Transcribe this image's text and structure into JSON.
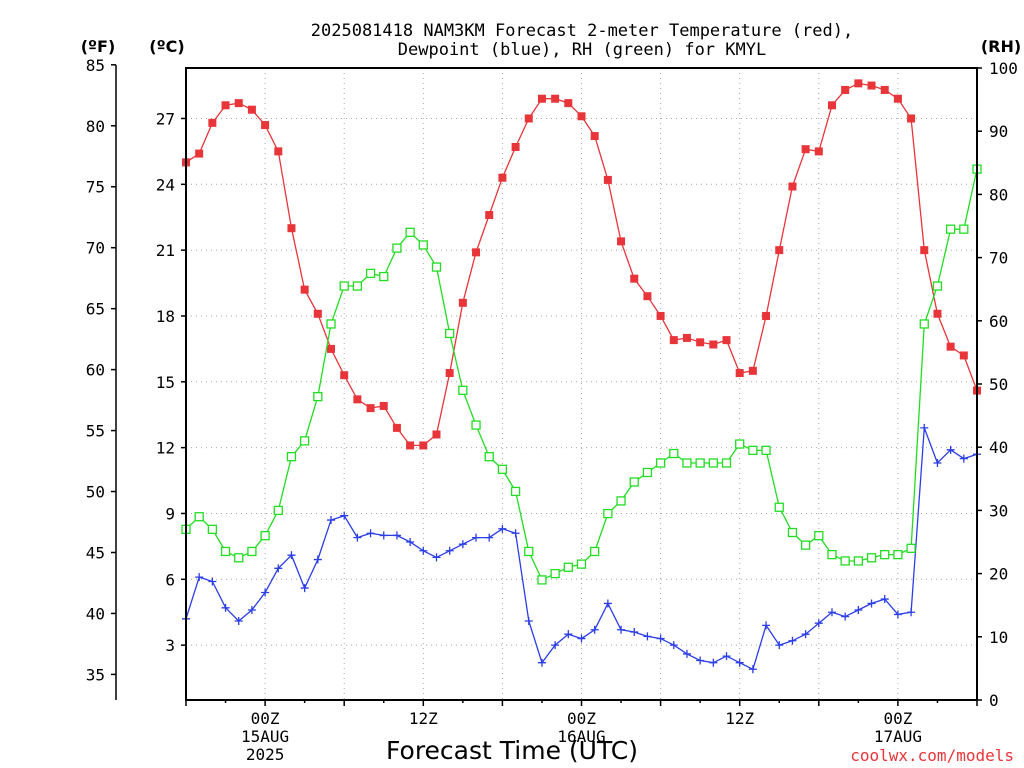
{
  "chart_data": {
    "type": "line",
    "title_lines": [
      "2025081418 NAM3KM Forecast 2-meter Temperature (red),",
      "Dewpoint (blue), RH (green) for KMYL"
    ],
    "xlabel": "Forecast Time (UTC)",
    "credit": "coolwx.com/models",
    "left_units_f": "(ºF)",
    "left_units_c": "(ºC)",
    "right_units": "(RH)",
    "x_ticks": [
      {
        "hour": 6,
        "lines": [
          "00Z",
          "15AUG",
          "2025"
        ]
      },
      {
        "hour": 18,
        "lines": [
          "12Z"
        ]
      },
      {
        "hour": 30,
        "lines": [
          "00Z",
          "16AUG"
        ]
      },
      {
        "hour": 42,
        "lines": [
          "12Z"
        ]
      },
      {
        "hour": 54,
        "lines": [
          "00Z",
          "17AUG"
        ]
      }
    ],
    "x_range_hours": [
      0,
      60
    ],
    "celsius_ticks": [
      3,
      6,
      9,
      12,
      15,
      18,
      21,
      24,
      27
    ],
    "fahrenheit_ticks": [
      35,
      40,
      45,
      50,
      55,
      60,
      65,
      70,
      75,
      80,
      85
    ],
    "rh_ticks": [
      0,
      10,
      20,
      30,
      40,
      50,
      60,
      70,
      80,
      90,
      100
    ],
    "celsius_range": [
      0.5,
      29.3
    ],
    "rh_range": [
      0,
      100
    ],
    "grid": true,
    "hours": [
      0,
      1,
      2,
      3,
      4,
      5,
      6,
      7,
      8,
      9,
      10,
      11,
      12,
      13,
      14,
      15,
      16,
      17,
      18,
      19,
      20,
      21,
      22,
      23,
      24,
      25,
      26,
      27,
      28,
      29,
      30,
      31,
      32,
      33,
      34,
      35,
      36,
      37,
      38,
      39,
      40,
      41,
      42,
      43,
      44,
      45,
      46,
      47,
      48,
      49,
      50,
      51,
      52,
      53,
      54,
      55,
      56,
      57,
      58,
      59,
      60
    ],
    "series": [
      {
        "name": "Temperature",
        "unit": "°C",
        "color": "#e8353a",
        "marker": "filled-square",
        "values": [
          25.0,
          25.4,
          26.8,
          27.6,
          27.7,
          27.4,
          26.7,
          25.5,
          22.0,
          19.2,
          18.1,
          16.5,
          15.3,
          14.2,
          13.8,
          13.9,
          12.9,
          12.1,
          12.1,
          12.6,
          15.4,
          18.6,
          20.9,
          22.6,
          24.3,
          25.7,
          27.0,
          27.9,
          27.9,
          27.7,
          27.1,
          26.2,
          24.2,
          21.4,
          19.7,
          18.9,
          18.0,
          16.9,
          17.0,
          16.8,
          16.7,
          16.9,
          15.4,
          15.5,
          18.0,
          21.0,
          23.9,
          25.6,
          25.5,
          27.6,
          28.3,
          28.6,
          28.5,
          28.3,
          27.9,
          27.0,
          21.0,
          18.1,
          16.6,
          16.2,
          14.6
        ]
      },
      {
        "name": "Dewpoint",
        "unit": "°C",
        "color": "#2b3ee6",
        "marker": "plus",
        "values": [
          4.2,
          6.1,
          5.9,
          4.7,
          4.1,
          4.6,
          5.4,
          6.5,
          7.1,
          5.6,
          6.9,
          8.7,
          8.9,
          7.9,
          8.1,
          8.0,
          8.0,
          7.7,
          7.3,
          7.0,
          7.3,
          7.6,
          7.9,
          7.9,
          8.3,
          8.1,
          4.1,
          2.2,
          3.0,
          3.5,
          3.3,
          3.7,
          4.9,
          3.7,
          3.6,
          3.4,
          3.3,
          3.0,
          2.6,
          2.3,
          2.2,
          2.5,
          2.2,
          1.9,
          3.9,
          3.0,
          3.2,
          3.5,
          4.0,
          4.5,
          4.3,
          4.6,
          4.9,
          5.1,
          4.4,
          4.5,
          12.9,
          11.3,
          11.9,
          11.5,
          11.7
        ]
      },
      {
        "name": "RH",
        "unit": "%",
        "color": "#22dd22",
        "marker": "open-square",
        "values": [
          27,
          29,
          27,
          23.5,
          22.5,
          23.5,
          26,
          30,
          38.5,
          41,
          48,
          59.5,
          65.5,
          65.5,
          67.5,
          67,
          71.5,
          74,
          72,
          68.5,
          58,
          49,
          43.5,
          38.5,
          36.5,
          33,
          23.5,
          19,
          20,
          21,
          21.5,
          23.5,
          29.5,
          31.5,
          34.5,
          36,
          37.5,
          39,
          37.5,
          37.5,
          37.5,
          37.5,
          40.5,
          39.5,
          39.5,
          30.5,
          26.5,
          24.5,
          26,
          23,
          22,
          22,
          22.5,
          23,
          23,
          24,
          59.5,
          65.5,
          74.5,
          74.5,
          84
        ]
      }
    ]
  }
}
